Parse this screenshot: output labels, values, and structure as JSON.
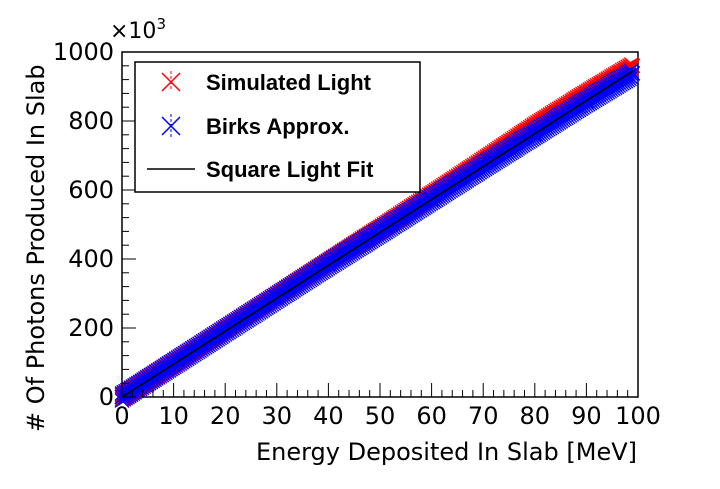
{
  "chart_data": {
    "type": "scatter",
    "title": "",
    "xlabel": "Energy Deposited In Slab [MeV]",
    "ylabel": "# Of Photons Produced In Slab",
    "y_multiplier": "×10",
    "y_multiplier_exp": "3",
    "xlim": [
      0,
      100
    ],
    "ylim": [
      0,
      1000
    ],
    "x_ticks": [
      "0",
      "10",
      "20",
      "30",
      "40",
      "50",
      "60",
      "70",
      "80",
      "90",
      "100"
    ],
    "y_ticks": [
      "0",
      "200",
      "400",
      "600",
      "800",
      "1000"
    ],
    "legend_position": "top-left",
    "series": [
      {
        "name": "Simulated Light",
        "marker": "x",
        "color": "#ff0000",
        "x": [
          0,
          10,
          20,
          30,
          40,
          50,
          60,
          70,
          80,
          90,
          99
        ],
        "y": [
          0,
          98,
          196,
          293,
          390,
          487,
          585,
          684,
          785,
          879,
          960
        ]
      },
      {
        "name": "Birks Approx.",
        "marker": "x",
        "color": "#0000ff",
        "x": [
          0,
          10,
          20,
          30,
          40,
          50,
          60,
          70,
          80,
          90,
          99
        ],
        "y": [
          0,
          96,
          192,
          288,
          384,
          478,
          573,
          668,
          762,
          856,
          938
        ]
      },
      {
        "name": "Square Light Fit",
        "marker": "line",
        "color": "#000000",
        "x": [
          0,
          99
        ],
        "y": [
          0,
          945
        ]
      }
    ]
  }
}
